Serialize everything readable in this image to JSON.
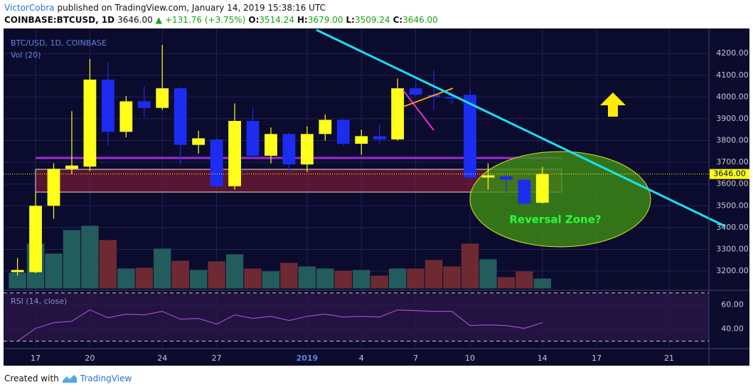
{
  "header": {
    "author": "VictorCobra",
    "published": "published on TradingView.com, January 14, 2019 15:38:16 UTC",
    "symbol": "COINBASE:BTCUSD, 1D",
    "last": "3646.00",
    "arrow": "▲",
    "change": "+131.76 (+3.75%)",
    "o_label": "O:",
    "o": "3514.24",
    "h_label": "H:",
    "h": "3679.00",
    "l_label": "L:",
    "l": "3509.24",
    "c_label": "C:",
    "c": "3646.00"
  },
  "chart_data": {
    "type": "candlestick",
    "title": "BTC/USD, 1D, COINBASE",
    "volume_label": "Vol (20)",
    "rsi_label": "RSI (14, close)",
    "annotation": "Reversal Zone?",
    "x": [
      0,
      1,
      2,
      3,
      4,
      5,
      6,
      7,
      8,
      9,
      10,
      11,
      12,
      13,
      14,
      15,
      16,
      17,
      18,
      19,
      20,
      21,
      22,
      23,
      24,
      25,
      26,
      27,
      28,
      29
    ],
    "open": [
      3195,
      3195,
      3500,
      3670,
      3680,
      4080,
      3840,
      3980,
      3950,
      4040,
      3780,
      3805,
      3590,
      3890,
      3730,
      3830,
      3690,
      3830,
      3895,
      3785,
      3820,
      3805,
      4040,
      4010,
      4000,
      4010,
      3630,
      3635,
      3620,
      3514.24
    ],
    "high": [
      3260,
      3565,
      3695,
      3935,
      4175,
      4160,
      4005,
      4050,
      4240,
      4045,
      3845,
      3810,
      3970,
      3950,
      3860,
      3835,
      3865,
      3920,
      3900,
      3850,
      3875,
      4085,
      4070,
      4125,
      4025,
      4040,
      3695,
      3645,
      3625,
      3679
    ],
    "low": [
      3180,
      3190,
      3440,
      3645,
      3660,
      3775,
      3815,
      3905,
      3940,
      3690,
      3740,
      3580,
      3575,
      3715,
      3695,
      3655,
      3655,
      3800,
      3775,
      3735,
      3785,
      3800,
      4005,
      3940,
      3970,
      3620,
      3575,
      3560,
      3505,
      3509.24
    ],
    "close": [
      3205,
      3500,
      3670,
      3685,
      4080,
      3840,
      3980,
      3950,
      4040,
      3780,
      3810,
      3590,
      3890,
      3730,
      3830,
      3690,
      3830,
      3895,
      3785,
      3820,
      3805,
      4040,
      4010,
      4000,
      3995,
      3630,
      3640,
      3620,
      3510,
      3646
    ],
    "volume": [
      22,
      63,
      49,
      82,
      88,
      68,
      28,
      29,
      56,
      39,
      26,
      38,
      48,
      28,
      24,
      36,
      31,
      28,
      25,
      26,
      18,
      28,
      28,
      40,
      31,
      63,
      41,
      16,
      24,
      14
    ],
    "rsi": [
      30,
      40.6,
      45.3,
      46.5,
      55.9,
      49.4,
      52.4,
      51.8,
      54.7,
      48.2,
      48.8,
      44.1,
      51.8,
      48.8,
      50.6,
      47.1,
      50.6,
      52.4,
      50,
      50.6,
      50,
      55.9,
      55.3,
      54.7,
      54.7,
      42.9,
      43.5,
      42.9,
      40.6,
      45.3
    ],
    "up_color": "#ffff1a",
    "down_color": "#1c2cf0",
    "volume_up_color": "#235c5c",
    "volume_down_color": "#6e2a33",
    "rsi_color": "#9b4fc0",
    "xlim": [
      -0.77,
      38.2
    ],
    "xticks": [
      {
        "value": 1,
        "label": "17"
      },
      {
        "value": 4,
        "label": "20"
      },
      {
        "value": 8,
        "label": "24"
      },
      {
        "value": 11,
        "label": "27"
      },
      {
        "value": 16,
        "label": "2019"
      },
      {
        "value": 19,
        "label": "4"
      },
      {
        "value": 22,
        "label": "7"
      },
      {
        "value": 25,
        "label": "10"
      },
      {
        "value": 29,
        "label": "14"
      },
      {
        "value": 32,
        "label": "17"
      },
      {
        "value": 36,
        "label": "21"
      }
    ],
    "ylim": [
      3120,
      4315
    ],
    "yticks": [
      {
        "value": 3200,
        "label": "3200.00"
      },
      {
        "value": 3300,
        "label": "3300.00"
      },
      {
        "value": 3400,
        "label": "3400.00"
      },
      {
        "value": 3500,
        "label": "3500.00"
      },
      {
        "value": 3600,
        "label": "3600.00"
      },
      {
        "value": 3700,
        "label": "3700.00"
      },
      {
        "value": 3800,
        "label": "3800.00"
      },
      {
        "value": 3900,
        "label": "3900.00"
      },
      {
        "value": 4000,
        "label": "4000.00"
      },
      {
        "value": 4100,
        "label": "4100.00"
      },
      {
        "value": 4200,
        "label": "4200.00"
      }
    ],
    "last_price": {
      "value": 3646,
      "label": "3646.00"
    },
    "volume_lim": [
      0,
      365
    ],
    "rsi_ylim": [
      25,
      71
    ],
    "rsi_yticks": [
      {
        "value": 60,
        "label": "60.00"
      },
      {
        "value": 40,
        "label": "40.00"
      }
    ],
    "rsi_bands": [
      30,
      70
    ],
    "grid": true
  },
  "footer": {
    "created": "Created with",
    "brand": "TradingView"
  }
}
